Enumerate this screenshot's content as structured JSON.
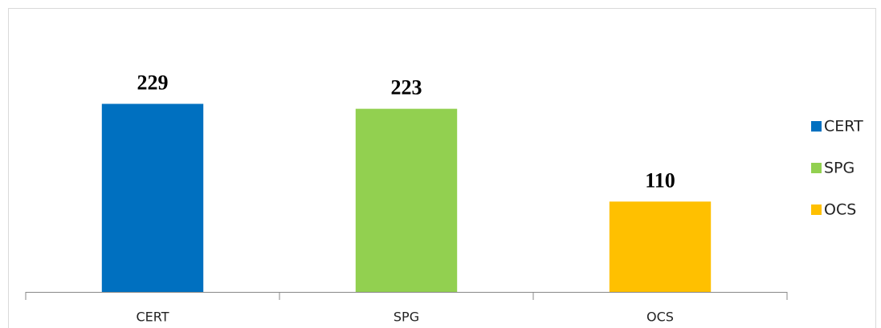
{
  "chart_data": {
    "type": "bar",
    "categories": [
      "CERT",
      "SPG",
      "OCS"
    ],
    "values": [
      229,
      223,
      110
    ],
    "colors": [
      "#0070c0",
      "#92d050",
      "#ffc000"
    ],
    "ylim": [
      0,
      250
    ],
    "legend": "right"
  }
}
